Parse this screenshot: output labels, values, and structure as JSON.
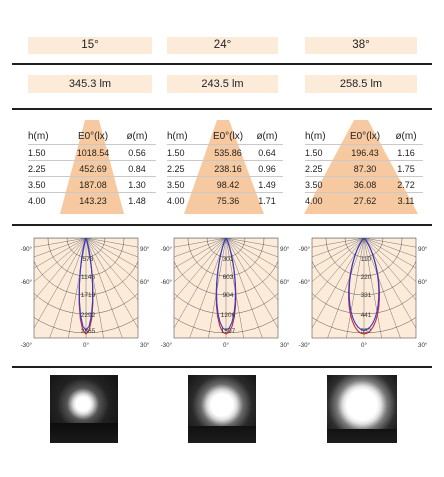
{
  "columns": [
    {
      "angle": "15°",
      "lumen": "345.3 lm",
      "headers": [
        "h(m)",
        "E0°(lx)",
        "ø(m)"
      ],
      "rows": [
        [
          "1.50",
          "1018.54",
          "0.56"
        ],
        [
          "2.25",
          "452.69",
          "0.84"
        ],
        [
          "3.50",
          "187.08",
          "1.30"
        ],
        [
          "4.00",
          "143.23",
          "1.48"
        ]
      ],
      "polar_labels": [
        "573",
        "1146",
        "1719",
        "2292",
        "2865"
      ],
      "spot": "small"
    },
    {
      "angle": "24°",
      "lumen": "243.5 lm",
      "headers": [
        "h(m)",
        "E0°(lx)",
        "ø(m)"
      ],
      "rows": [
        [
          "1.50",
          "535.86",
          "0.64"
        ],
        [
          "2.25",
          "238.16",
          "0.96"
        ],
        [
          "3.50",
          "98.42",
          "1.49"
        ],
        [
          "4.00",
          "75.36",
          "1.71"
        ]
      ],
      "polar_labels": [
        "301",
        "603",
        "904",
        "1206",
        "1507"
      ],
      "spot": "medium"
    },
    {
      "angle": "38°",
      "lumen": "258.5 lm",
      "headers": [
        "h(m)",
        "E0°(lx)",
        "ø(m)"
      ],
      "rows": [
        [
          "1.50",
          "196.43",
          "1.16"
        ],
        [
          "2.25",
          "87.30",
          "1.75"
        ],
        [
          "3.50",
          "36.08",
          "2.72"
        ],
        [
          "4.00",
          "27.62",
          "3.11"
        ]
      ],
      "polar_labels": [
        "110",
        "220",
        "331",
        "441",
        "552"
      ],
      "spot": "large"
    }
  ],
  "polar_axis": {
    "left_top": "-90°",
    "left_mid": "-60°",
    "left_bottom": "-30°",
    "bottom": "0°",
    "right_top": "90°",
    "right_mid": "60°",
    "right_bottom": "30°"
  },
  "chart_data": {
    "type": "table",
    "series": [
      {
        "name": "15°",
        "lumen": "345.3 lm",
        "h_m": [
          1.5,
          2.25,
          3.5,
          4.0
        ],
        "E0_lx": [
          1018.54,
          452.69,
          187.08,
          143.23
        ],
        "diameter_m": [
          0.56,
          0.84,
          1.3,
          1.48
        ]
      },
      {
        "name": "24°",
        "lumen": "243.5 lm",
        "h_m": [
          1.5,
          2.25,
          3.5,
          4.0
        ],
        "E0_lx": [
          535.86,
          238.16,
          98.42,
          75.36
        ],
        "diameter_m": [
          0.64,
          0.96,
          1.49,
          1.71
        ]
      },
      {
        "name": "38°",
        "lumen": "258.5 lm",
        "h_m": [
          1.5,
          2.25,
          3.5,
          4.0
        ],
        "E0_lx": [
          196.43,
          87.3,
          36.08,
          27.62
        ],
        "diameter_m": [
          1.16,
          1.75,
          2.72,
          3.11
        ]
      }
    ],
    "polar_curves": [
      {
        "name": "15°",
        "max_cd": 2865,
        "ring_labels": [
          573,
          1146,
          1719,
          2292,
          2865
        ]
      },
      {
        "name": "24°",
        "max_cd": 1507,
        "ring_labels": [
          301,
          603,
          904,
          1206,
          1507
        ]
      },
      {
        "name": "38°",
        "max_cd": 552,
        "ring_labels": [
          110,
          220,
          331,
          441,
          552
        ]
      }
    ]
  },
  "colors": {
    "peach": "#fdebd9",
    "cone": "#f7c9a0",
    "grid": "#555555",
    "curve_blue": "#2a3fd0",
    "curve_red": "#d0253a"
  }
}
